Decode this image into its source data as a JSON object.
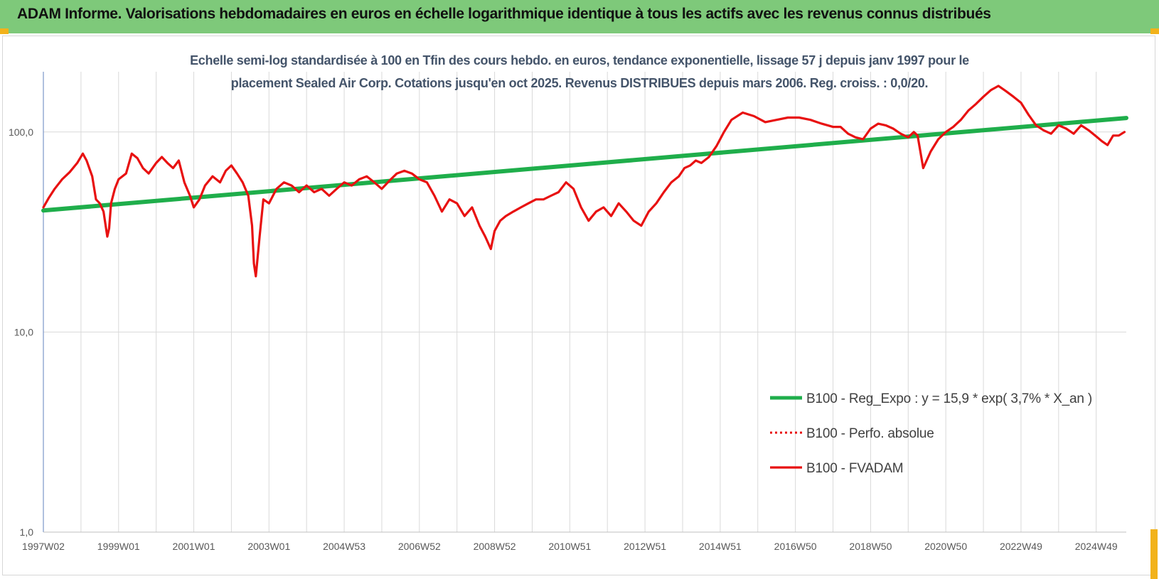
{
  "header": {
    "title": "ADAM Informe. Valorisations hebdomadaires en euros en échelle logarithmique identique à tous les actifs avec les revenus connus distribués"
  },
  "chart_data": {
    "type": "line",
    "title_lines": [
      "Echelle semi-log standardisée à 100 en Tfin des cours hebdo. en euros, tendance exponentielle, lissage 57 j depuis janv 1997 pour le",
      "placement Sealed Air Corp. Cotations jusqu'en oct 2025. Revenus DISTRIBUES depuis mars 2006. Reg. croiss. : 0,0/20."
    ],
    "y_scale": "log",
    "ylim": [
      1,
      200
    ],
    "y_ticks": [
      {
        "value": 1,
        "label": "1,0"
      },
      {
        "value": 10,
        "label": "10,0"
      },
      {
        "value": 100,
        "label": "100,0"
      }
    ],
    "xlim": [
      1997.0,
      2025.8
    ],
    "x_ticks": [
      {
        "value": 1997.0,
        "label": "1997W02"
      },
      {
        "value": 1999.0,
        "label": "1999W01"
      },
      {
        "value": 2001.0,
        "label": "2001W01"
      },
      {
        "value": 2003.0,
        "label": "2003W01"
      },
      {
        "value": 2005.0,
        "label": "2004W53"
      },
      {
        "value": 2007.0,
        "label": "2006W52"
      },
      {
        "value": 2009.0,
        "label": "2008W52"
      },
      {
        "value": 2011.0,
        "label": "2010W51"
      },
      {
        "value": 2013.0,
        "label": "2012W51"
      },
      {
        "value": 2015.0,
        "label": "2014W51"
      },
      {
        "value": 2017.0,
        "label": "2016W50"
      },
      {
        "value": 2019.0,
        "label": "2018W50"
      },
      {
        "value": 2021.0,
        "label": "2020W50"
      },
      {
        "value": 2023.0,
        "label": "2022W49"
      },
      {
        "value": 2025.0,
        "label": "2024W49"
      }
    ],
    "grid": "vertical and horizontal",
    "legend_position": "bottom-right",
    "colors": {
      "regression": "#1fae4b",
      "perf_absolue": "#e81111",
      "fvadam": "#e81111"
    },
    "series": [
      {
        "name": "B100 - Reg_Expo : y = 15,9 * exp( 3,7% *  X_an )",
        "style": "solid-thick",
        "x": [
          1997.0,
          2025.8
        ],
        "y": [
          40.5,
          117.5
        ]
      },
      {
        "name": "B100 - Perfo. absolue",
        "style": "dotted",
        "x": [],
        "y": []
      },
      {
        "name": "B100 - FVADAM",
        "style": "solid",
        "x": [
          1997.0,
          1997.15,
          1997.3,
          1997.5,
          1997.7,
          1997.9,
          1998.05,
          1998.15,
          1998.3,
          1998.4,
          1998.5,
          1998.6,
          1998.7,
          1998.75,
          1998.8,
          1998.9,
          1999.0,
          1999.1,
          1999.2,
          1999.35,
          1999.5,
          1999.65,
          1999.8,
          2000.0,
          2000.15,
          2000.3,
          2000.45,
          2000.6,
          2000.75,
          2000.9,
          2001.0,
          2001.15,
          2001.3,
          2001.5,
          2001.7,
          2001.85,
          2002.0,
          2002.15,
          2002.3,
          2002.45,
          2002.55,
          2002.6,
          2002.65,
          2002.75,
          2002.85,
          2003.0,
          2003.2,
          2003.4,
          2003.6,
          2003.8,
          2004.0,
          2004.2,
          2004.4,
          2004.6,
          2004.8,
          2005.0,
          2005.2,
          2005.4,
          2005.6,
          2005.8,
          2006.0,
          2006.2,
          2006.4,
          2006.6,
          2006.8,
          2007.0,
          2007.2,
          2007.4,
          2007.6,
          2007.8,
          2008.0,
          2008.2,
          2008.4,
          2008.6,
          2008.75,
          2008.9,
          2009.0,
          2009.15,
          2009.3,
          2009.5,
          2009.7,
          2009.9,
          2010.1,
          2010.3,
          2010.5,
          2010.7,
          2010.9,
          2011.1,
          2011.3,
          2011.5,
          2011.7,
          2011.9,
          2012.1,
          2012.3,
          2012.5,
          2012.7,
          2012.9,
          2013.1,
          2013.3,
          2013.5,
          2013.7,
          2013.9,
          2014.05,
          2014.2,
          2014.35,
          2014.5,
          2014.7,
          2014.9,
          2015.1,
          2015.3,
          2015.6,
          2015.9,
          2016.2,
          2016.5,
          2016.8,
          2017.1,
          2017.4,
          2017.7,
          2018.0,
          2018.2,
          2018.4,
          2018.6,
          2018.8,
          2019.0,
          2019.2,
          2019.4,
          2019.6,
          2019.8,
          2020.0,
          2020.15,
          2020.25,
          2020.4,
          2020.6,
          2020.8,
          2021.0,
          2021.2,
          2021.4,
          2021.6,
          2021.8,
          2022.0,
          2022.2,
          2022.4,
          2022.6,
          2022.8,
          2023.0,
          2023.2,
          2023.4,
          2023.6,
          2023.8,
          2024.0,
          2024.2,
          2024.4,
          2024.6,
          2024.8,
          2025.0,
          2025.15,
          2025.3,
          2025.45,
          2025.6,
          2025.75
        ],
        "y": [
          42,
          47,
          52,
          58,
          63,
          70,
          78,
          72,
          60,
          46,
          44,
          40,
          30,
          33,
          44,
          52,
          58,
          60,
          62,
          78,
          74,
          66,
          62,
          70,
          75,
          70,
          66,
          72,
          56,
          48,
          42,
          46,
          54,
          60,
          56,
          64,
          68,
          62,
          56,
          48,
          34,
          22,
          19,
          30,
          46,
          44,
          52,
          56,
          54,
          50,
          54,
          50,
          52,
          48,
          52,
          56,
          54,
          58,
          60,
          56,
          52,
          57,
          62,
          64,
          62,
          58,
          56,
          48,
          40,
          46,
          44,
          38,
          42,
          34,
          30,
          26,
          32,
          36,
          38,
          40,
          42,
          44,
          46,
          46,
          48,
          50,
          56,
          52,
          42,
          36,
          40,
          42,
          38,
          44,
          40,
          36,
          34,
          40,
          44,
          50,
          56,
          60,
          66,
          68,
          72,
          70,
          75,
          85,
          100,
          115,
          125,
          120,
          112,
          115,
          118,
          118,
          115,
          110,
          106,
          106,
          98,
          94,
          92,
          104,
          110,
          108,
          104,
          98,
          94,
          100,
          96,
          66,
          80,
          92,
          100,
          106,
          115,
          128,
          138,
          150,
          162,
          170,
          160,
          150,
          140,
          122,
          108,
          102,
          98,
          108,
          104,
          98,
          108,
          102,
          95,
          90,
          86,
          96,
          96,
          100
        ]
      }
    ]
  }
}
